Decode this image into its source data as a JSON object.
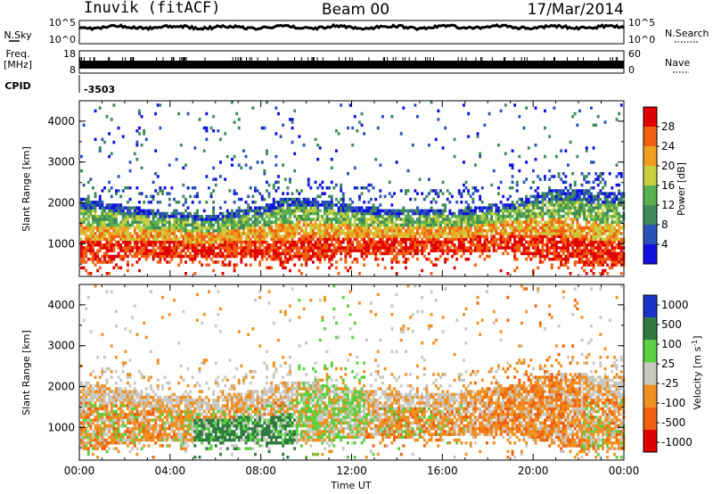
{
  "header": {
    "station": "Inuvik (fitACF)",
    "beam": "Beam 00",
    "date": "17/Mar/2014"
  },
  "nsky_panel": {
    "left_label": "N.Sky",
    "right_label": "N.Search",
    "left_ticks": [
      "10^5",
      "10^0"
    ],
    "right_ticks": [
      "10^5",
      "10^0"
    ]
  },
  "freq_panel": {
    "left_label_line1": "Freq.",
    "left_label_line2": "[MHz]",
    "right_label": "Nave",
    "left_ticks": [
      "18",
      "8"
    ],
    "right_ticks": [
      "60",
      "0"
    ]
  },
  "cpid": {
    "label": "CPID",
    "value": "-3503"
  },
  "colors": {
    "power": [
      "#1010e0",
      "#2a52b8",
      "#3f8a5a",
      "#58b050",
      "#c8d040",
      "#f0a020",
      "#f06010",
      "#e00000"
    ],
    "velocity": [
      "#1a34c8",
      "#2f7a40",
      "#5ad040",
      "#c8c8c0",
      "#f09020",
      "#f06010",
      "#e00000"
    ]
  },
  "chart_data": [
    {
      "type": "heatmap",
      "name": "power",
      "ylabel": "Slant Range [km]",
      "yticks": [
        "1000",
        "2000",
        "3000",
        "4000"
      ],
      "ylim": [
        200,
        4500
      ],
      "xlabel": "",
      "colorbar": {
        "label": "Power [dB]",
        "ticks": [
          "4",
          "8",
          "12",
          "16",
          "20",
          "24",
          "28"
        ],
        "range": [
          0,
          32
        ]
      },
      "band_profile": {
        "x_hours": [
          0,
          1,
          2,
          3,
          4,
          5,
          6,
          7,
          8,
          9,
          10,
          11,
          12,
          13,
          14,
          15,
          16,
          17,
          18,
          19,
          20,
          21,
          22,
          23,
          24
        ],
        "lower_km": [
          450,
          500,
          600,
          650,
          650,
          600,
          600,
          650,
          600,
          500,
          650,
          650,
          700,
          700,
          700,
          750,
          750,
          750,
          800,
          800,
          650,
          550,
          450,
          400,
          400
        ],
        "upper_km": [
          2100,
          2000,
          1900,
          1800,
          1750,
          1700,
          1700,
          1800,
          1900,
          2100,
          2100,
          2000,
          1900,
          1850,
          1800,
          1800,
          1800,
          1850,
          1900,
          2000,
          2200,
          2300,
          2300,
          2200,
          2200
        ]
      }
    },
    {
      "type": "heatmap",
      "name": "velocity",
      "ylabel": "Slant Range [km]",
      "yticks": [
        "1000",
        "2000",
        "3000",
        "4000"
      ],
      "ylim": [
        200,
        4500
      ],
      "xlabel": "Time UT",
      "xticks": [
        "00:00",
        "04:00",
        "08:00",
        "12:00",
        "16:00",
        "20:00",
        "00:00"
      ],
      "xlim": [
        0,
        24
      ],
      "colorbar": {
        "label": "Velocity [m s^-1]",
        "ticks": [
          "1000",
          "500",
          "100",
          "25",
          "-25",
          "-100",
          "-500",
          "-1000"
        ]
      }
    }
  ]
}
